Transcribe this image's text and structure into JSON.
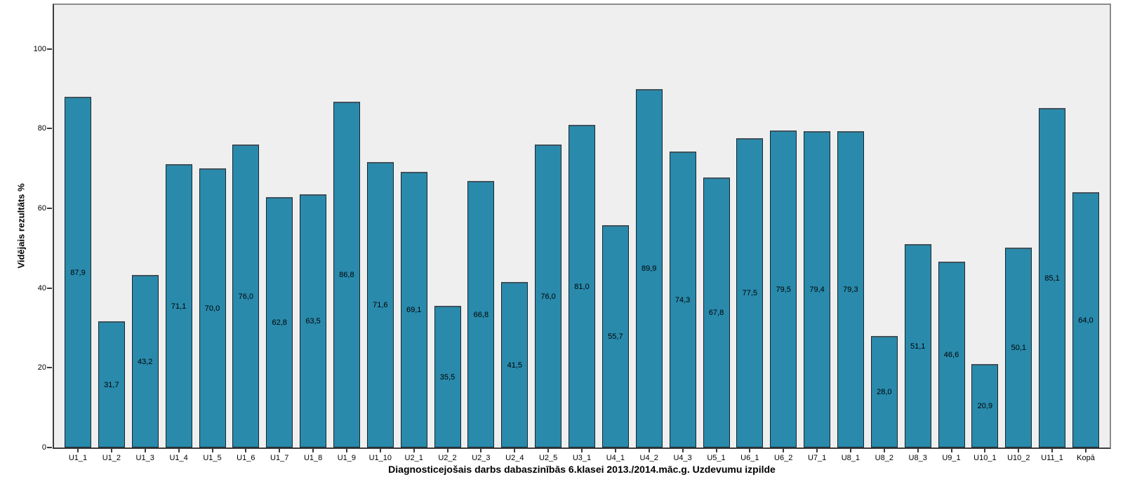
{
  "chart_data": {
    "type": "bar",
    "xlabel": "Diagnosticejošais darbs dabaszinībās 6.klasei 2013./2014.māc.g. Uzdevumu izpilde",
    "ylabel": "Vidējais rezultāts %",
    "categories": [
      "U1_1",
      "U1_2",
      "U1_3",
      "U1_4",
      "U1_5",
      "U1_6",
      "U1_7",
      "U1_8",
      "U1_9",
      "U1_10",
      "U2_1",
      "U2_2",
      "U2_3",
      "U2_4",
      "U2_5",
      "U3_1",
      "U4_1",
      "U4_2",
      "U4_3",
      "U5_1",
      "U6_1",
      "U6_2",
      "U7_1",
      "U8_1",
      "U8_2",
      "U8_3",
      "U9_1",
      "U10_1",
      "U10_2",
      "U11_1",
      "Kopā"
    ],
    "values": [
      87.9,
      31.7,
      43.2,
      71.1,
      70.0,
      76.0,
      62.8,
      63.5,
      86.8,
      71.6,
      69.1,
      35.5,
      66.8,
      41.5,
      76.0,
      81.0,
      55.7,
      89.9,
      74.3,
      67.8,
      77.5,
      79.5,
      79.4,
      79.3,
      28.0,
      51.1,
      46.6,
      20.9,
      50.1,
      85.1,
      64.0
    ],
    "value_labels": [
      "87,9",
      "31,7",
      "43,2",
      "71,1",
      "70,0",
      "76,0",
      "62,8",
      "63,5",
      "86,8",
      "71,6",
      "69,1",
      "35,5",
      "66,8",
      "41,5",
      "76,0",
      "81,0",
      "55,7",
      "89,9",
      "74,3",
      "67,8",
      "77,5",
      "79,5",
      "79,4",
      "79,3",
      "28,0",
      "51,1",
      "46,6",
      "20,9",
      "50,1",
      "85,1",
      "64,0"
    ],
    "yticks": [
      0,
      20,
      40,
      60,
      80,
      100
    ],
    "ylim": [
      0,
      111
    ],
    "grid": false,
    "legend": "none",
    "colors": {
      "bar_fill": "#298AAC",
      "bar_border": "#17262E",
      "plot_background": "#EFEFEF",
      "figure_background": "#FFFFFF",
      "axis_dark": "#3C3C3C",
      "axis_light": "#8C8C8C",
      "text": "#000000"
    }
  }
}
